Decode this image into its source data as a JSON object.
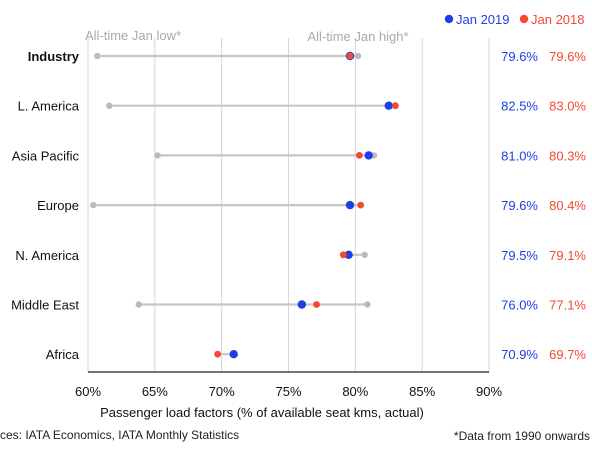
{
  "chart_data": {
    "type": "dumbbell",
    "xlabel": "Passenger load factors (% of available seat kms, actual)",
    "xlim": [
      60,
      90
    ],
    "xticks": [
      "60%",
      "65%",
      "70%",
      "75%",
      "80%",
      "85%",
      "90%"
    ],
    "grid": true,
    "legend": {
      "position": "top-right",
      "entries": [
        {
          "name": "Jan 2019",
          "color": "#1f3ee6"
        },
        {
          "name": "Jan 2018",
          "color": "#f04b30"
        }
      ]
    },
    "annotations": {
      "low": "All-time Jan low*",
      "high": "All-time Jan high*"
    },
    "categories": [
      "Industry",
      "L. America",
      "Asia Pacific",
      "Europe",
      "N. America",
      "Middle East",
      "Africa"
    ],
    "bold_categories": [
      "Industry"
    ],
    "series": [
      {
        "name": "Jan 2019",
        "color": "#1f3ee6",
        "values": [
          79.6,
          82.5,
          81.0,
          79.6,
          79.5,
          76.0,
          70.9
        ],
        "labels": [
          "79.6%",
          "82.5%",
          "81.0%",
          "79.6%",
          "79.5%",
          "76.0%",
          "70.9%"
        ]
      },
      {
        "name": "Jan 2018",
        "color": "#f04b30",
        "values": [
          79.6,
          83.0,
          80.3,
          80.4,
          79.1,
          77.1,
          69.7
        ],
        "labels": [
          "79.6%",
          "83.0%",
          "80.3%",
          "80.4%",
          "79.1%",
          "77.1%",
          "69.7%"
        ]
      },
      {
        "name": "All-time Jan low",
        "color": "#bbbbbb",
        "values": [
          60.7,
          61.6,
          65.2,
          60.4,
          null,
          63.8,
          null
        ]
      },
      {
        "name": "All-time Jan high",
        "color": "#bbbbbb",
        "values": [
          80.2,
          null,
          81.4,
          null,
          80.7,
          80.9,
          null
        ]
      }
    ],
    "range_line_color": "#c6c6c6"
  },
  "footer": {
    "source": "ces: IATA Economics, IATA Monthly Statistics",
    "note": "*Data from 1990 onwards"
  }
}
